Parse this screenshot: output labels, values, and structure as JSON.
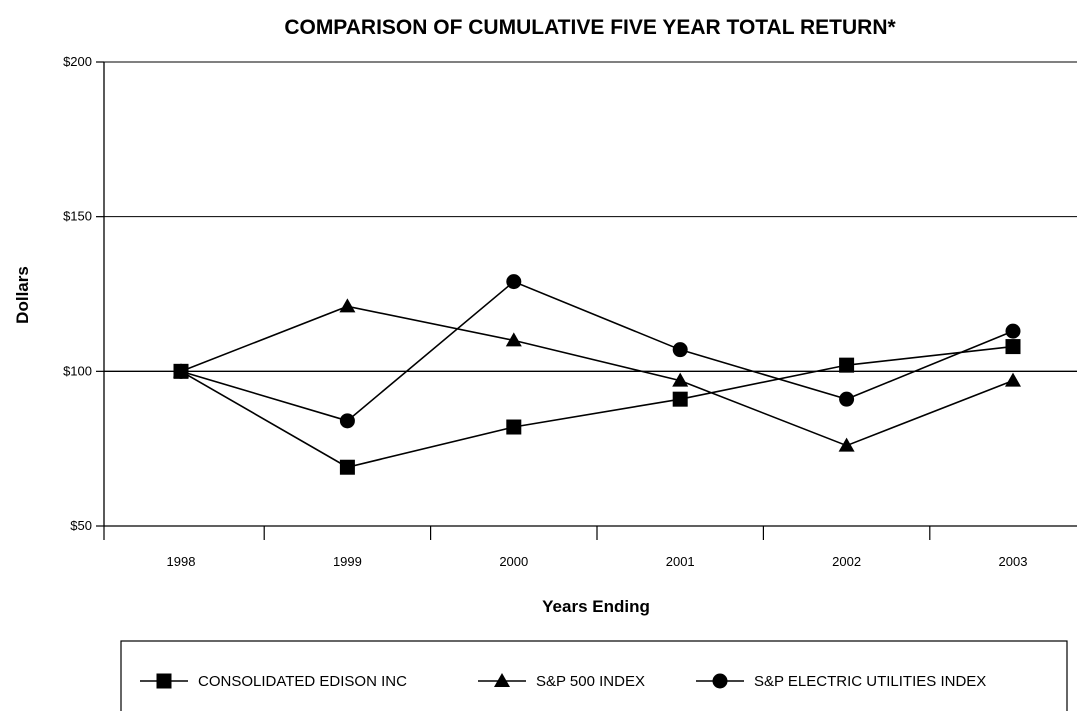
{
  "chart_data": {
    "type": "line",
    "title": "COMPARISON OF CUMULATIVE FIVE YEAR TOTAL RETURN*",
    "xlabel": "Years Ending",
    "ylabel": "Dollars",
    "categories": [
      "1998",
      "1999",
      "2000",
      "2001",
      "2002",
      "2003"
    ],
    "ylim": [
      50,
      200
    ],
    "yticks": [
      50,
      100,
      150,
      200
    ],
    "ytick_labels": [
      "$50",
      "$100",
      "$150",
      "$200"
    ],
    "grid": "horizontal",
    "legend_position": "bottom",
    "series": [
      {
        "name": "CONSOLIDATED EDISON INC",
        "marker": "square",
        "values": [
          100,
          69,
          82,
          91,
          102,
          108
        ]
      },
      {
        "name": "S&P 500 INDEX",
        "marker": "triangle",
        "values": [
          100,
          121,
          110,
          97,
          76,
          97
        ]
      },
      {
        "name": "S&P ELECTRIC UTILITIES INDEX",
        "marker": "circle",
        "values": [
          100,
          84,
          129,
          107,
          91,
          113
        ]
      }
    ],
    "colors": {
      "line": "#000000",
      "grid": "#000000",
      "background": "#ffffff"
    }
  }
}
